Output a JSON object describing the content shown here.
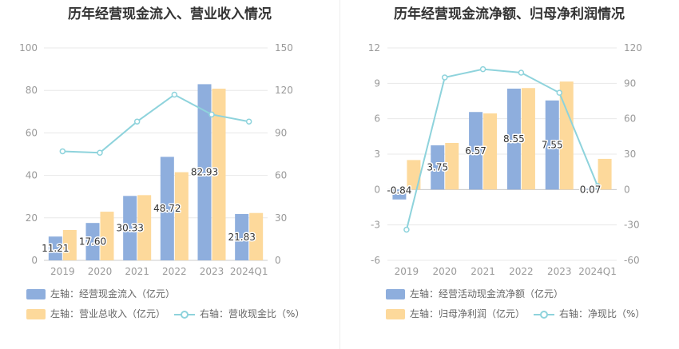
{
  "charts": [
    {
      "title": "历年经营现金流入、营业收入情况",
      "legend": {
        "bar1": "左轴：经营现金流入（亿元）",
        "bar2": "左轴：营业总收入（亿元）",
        "line": "右轴：营收现金比（%）"
      }
    },
    {
      "title": "历年经营现金流净额、归母净利润情况",
      "legend": {
        "bar1": "左轴：经营活动现金流净额（亿元）",
        "bar2": "左轴：归母净利润（亿元）",
        "line": "右轴：净现比（%）"
      }
    }
  ],
  "colors": {
    "bar1": "#8eaedd",
    "bar2": "#fdd99b",
    "line": "#8ed3dc",
    "axis_text": "#999999",
    "grid": "#e8e8e8"
  },
  "chart_data": [
    {
      "type": "bar",
      "title": "历年经营现金流入、营业收入情况",
      "categories": [
        "2019",
        "2020",
        "2021",
        "2022",
        "2023",
        "2024Q1"
      ],
      "y_left": {
        "min": 0,
        "max": 100,
        "ticks": [
          0,
          20,
          40,
          60,
          80,
          100
        ]
      },
      "y_right": {
        "min": 0,
        "max": 150,
        "ticks": [
          0,
          30,
          60,
          90,
          120,
          150
        ]
      },
      "series": [
        {
          "name": "左轴：经营现金流入（亿元）",
          "axis": "left",
          "kind": "bar",
          "values": [
            11.21,
            17.6,
            30.33,
            48.72,
            82.93,
            21.83
          ],
          "labels": [
            "11.21",
            "17.60",
            "30.33",
            "48.72",
            "82.93",
            "21.83"
          ]
        },
        {
          "name": "左轴：营业总收入（亿元）",
          "axis": "left",
          "kind": "bar",
          "values": [
            14.3,
            22.9,
            30.7,
            41.5,
            80.8,
            22.3
          ]
        },
        {
          "name": "右轴：营收现金比（%）",
          "axis": "right",
          "kind": "line",
          "values": [
            77,
            76,
            98,
            117,
            103,
            98
          ]
        }
      ],
      "legend_position": "bottom"
    },
    {
      "type": "bar",
      "title": "历年经营现金流净额、归母净利润情况",
      "categories": [
        "2019",
        "2020",
        "2021",
        "2022",
        "2023",
        "2024Q1"
      ],
      "y_left": {
        "min": -6,
        "max": 12,
        "ticks": [
          -6,
          -3,
          0,
          3,
          6,
          9,
          12
        ]
      },
      "y_right": {
        "min": -60,
        "max": 120,
        "ticks": [
          -60,
          -30,
          0,
          30,
          60,
          90,
          120
        ]
      },
      "series": [
        {
          "name": "左轴：经营活动现金流净额（亿元）",
          "axis": "left",
          "kind": "bar",
          "values": [
            -0.84,
            3.75,
            6.57,
            8.55,
            7.55,
            0.07
          ],
          "labels": [
            "-0.84",
            "3.75",
            "6.57",
            "8.55",
            "7.55",
            "0.07"
          ]
        },
        {
          "name": "左轴：归母净利润（亿元）",
          "axis": "left",
          "kind": "bar",
          "values": [
            2.5,
            3.95,
            6.45,
            8.6,
            9.15,
            2.6
          ]
        },
        {
          "name": "右轴：净现比（%）",
          "axis": "right",
          "kind": "line",
          "values": [
            -34,
            95,
            102,
            99,
            82,
            3
          ]
        }
      ],
      "legend_position": "bottom"
    }
  ]
}
